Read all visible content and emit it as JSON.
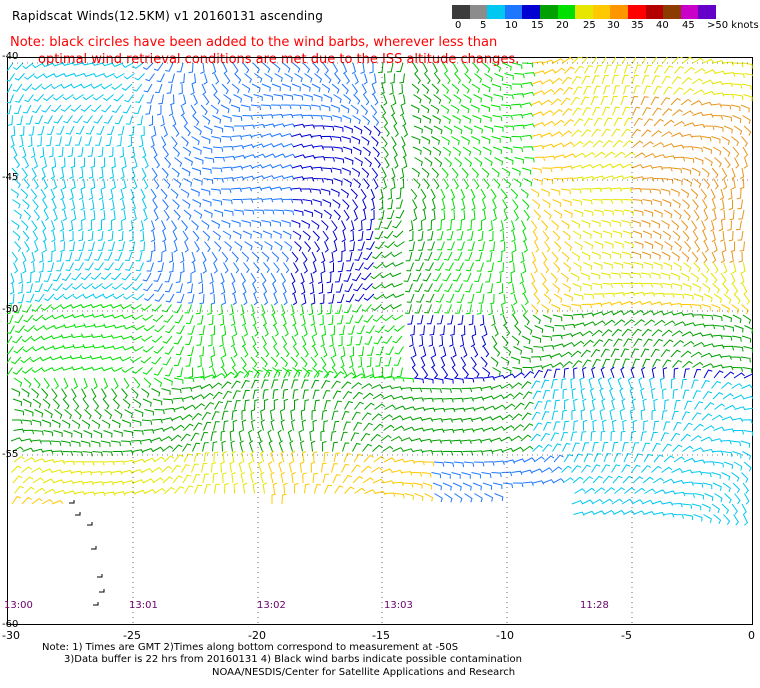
{
  "title": "Rapidscat Winds(12.5KM) v1 20160131 ascending",
  "note": {
    "line1": "Note: black circles have been added to the wind barbs, wherever less than",
    "line2": "optimal wind retrieval conditions are met due to the ISS altitude changes."
  },
  "colorbar": {
    "colors": [
      "#3c3c3c",
      "#8c8c8c",
      "#00c8f0",
      "#1e78ff",
      "#0000d2",
      "#00a000",
      "#00e000",
      "#e6e600",
      "#ffc800",
      "#ff9600",
      "#ff0000",
      "#b40000",
      "#8c3c00",
      "#c800c8",
      "#6400c8"
    ],
    "labels": [
      "0",
      "5",
      "10",
      "15",
      "20",
      "25",
      "30",
      "35",
      "40",
      "45",
      ">50 knots"
    ]
  },
  "axes": {
    "lat_labels": [
      "-40",
      "-45",
      "-50",
      "-55",
      "-60"
    ],
    "lon_labels": [
      "-30",
      "-25",
      "-20",
      "-15",
      "-10",
      "-5",
      "0"
    ]
  },
  "time_labels": [
    "13:00",
    "13:01",
    "13:02",
    "13:03",
    "11:28"
  ],
  "footer": {
    "line1": "Note: 1) Times are GMT 2)Times along bottom correspond to measurement at -50S",
    "line2": "3)Data buffer is 22 hrs from 20160131 4) Black wind barbs indicate possible contamination",
    "line3": "NOAA/NESDIS/Center for Satellite Applications and Research"
  }
}
